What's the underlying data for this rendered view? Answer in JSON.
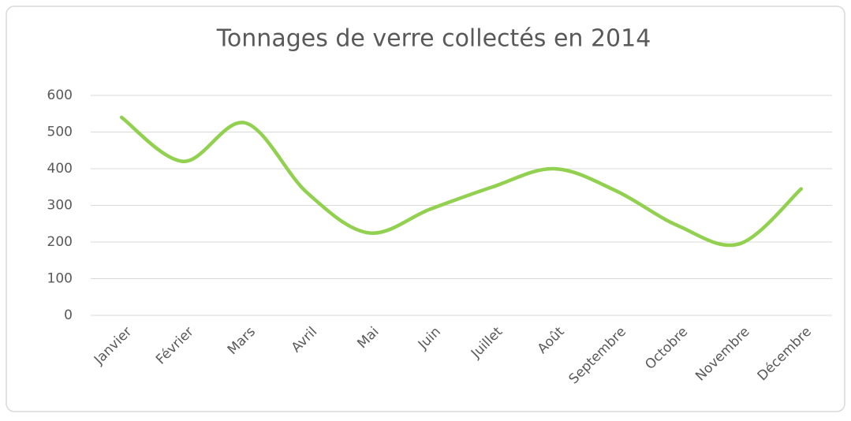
{
  "chart_data": {
    "type": "line",
    "title": "Tonnages de verre collectés en 2014",
    "categories": [
      "Janvier",
      "Février",
      "Mars",
      "Avril",
      "Mai",
      "Juin",
      "Juillet",
      "Août",
      "Septembre",
      "Octobre",
      "Novembre",
      "Décembre"
    ],
    "values": [
      540,
      420,
      525,
      335,
      225,
      290,
      350,
      400,
      340,
      245,
      195,
      345
    ],
    "color": "#92d050",
    "smooth": true,
    "ylim": [
      0,
      600
    ],
    "yticks": [
      0,
      100,
      200,
      300,
      400,
      500,
      600
    ],
    "grid": true
  }
}
